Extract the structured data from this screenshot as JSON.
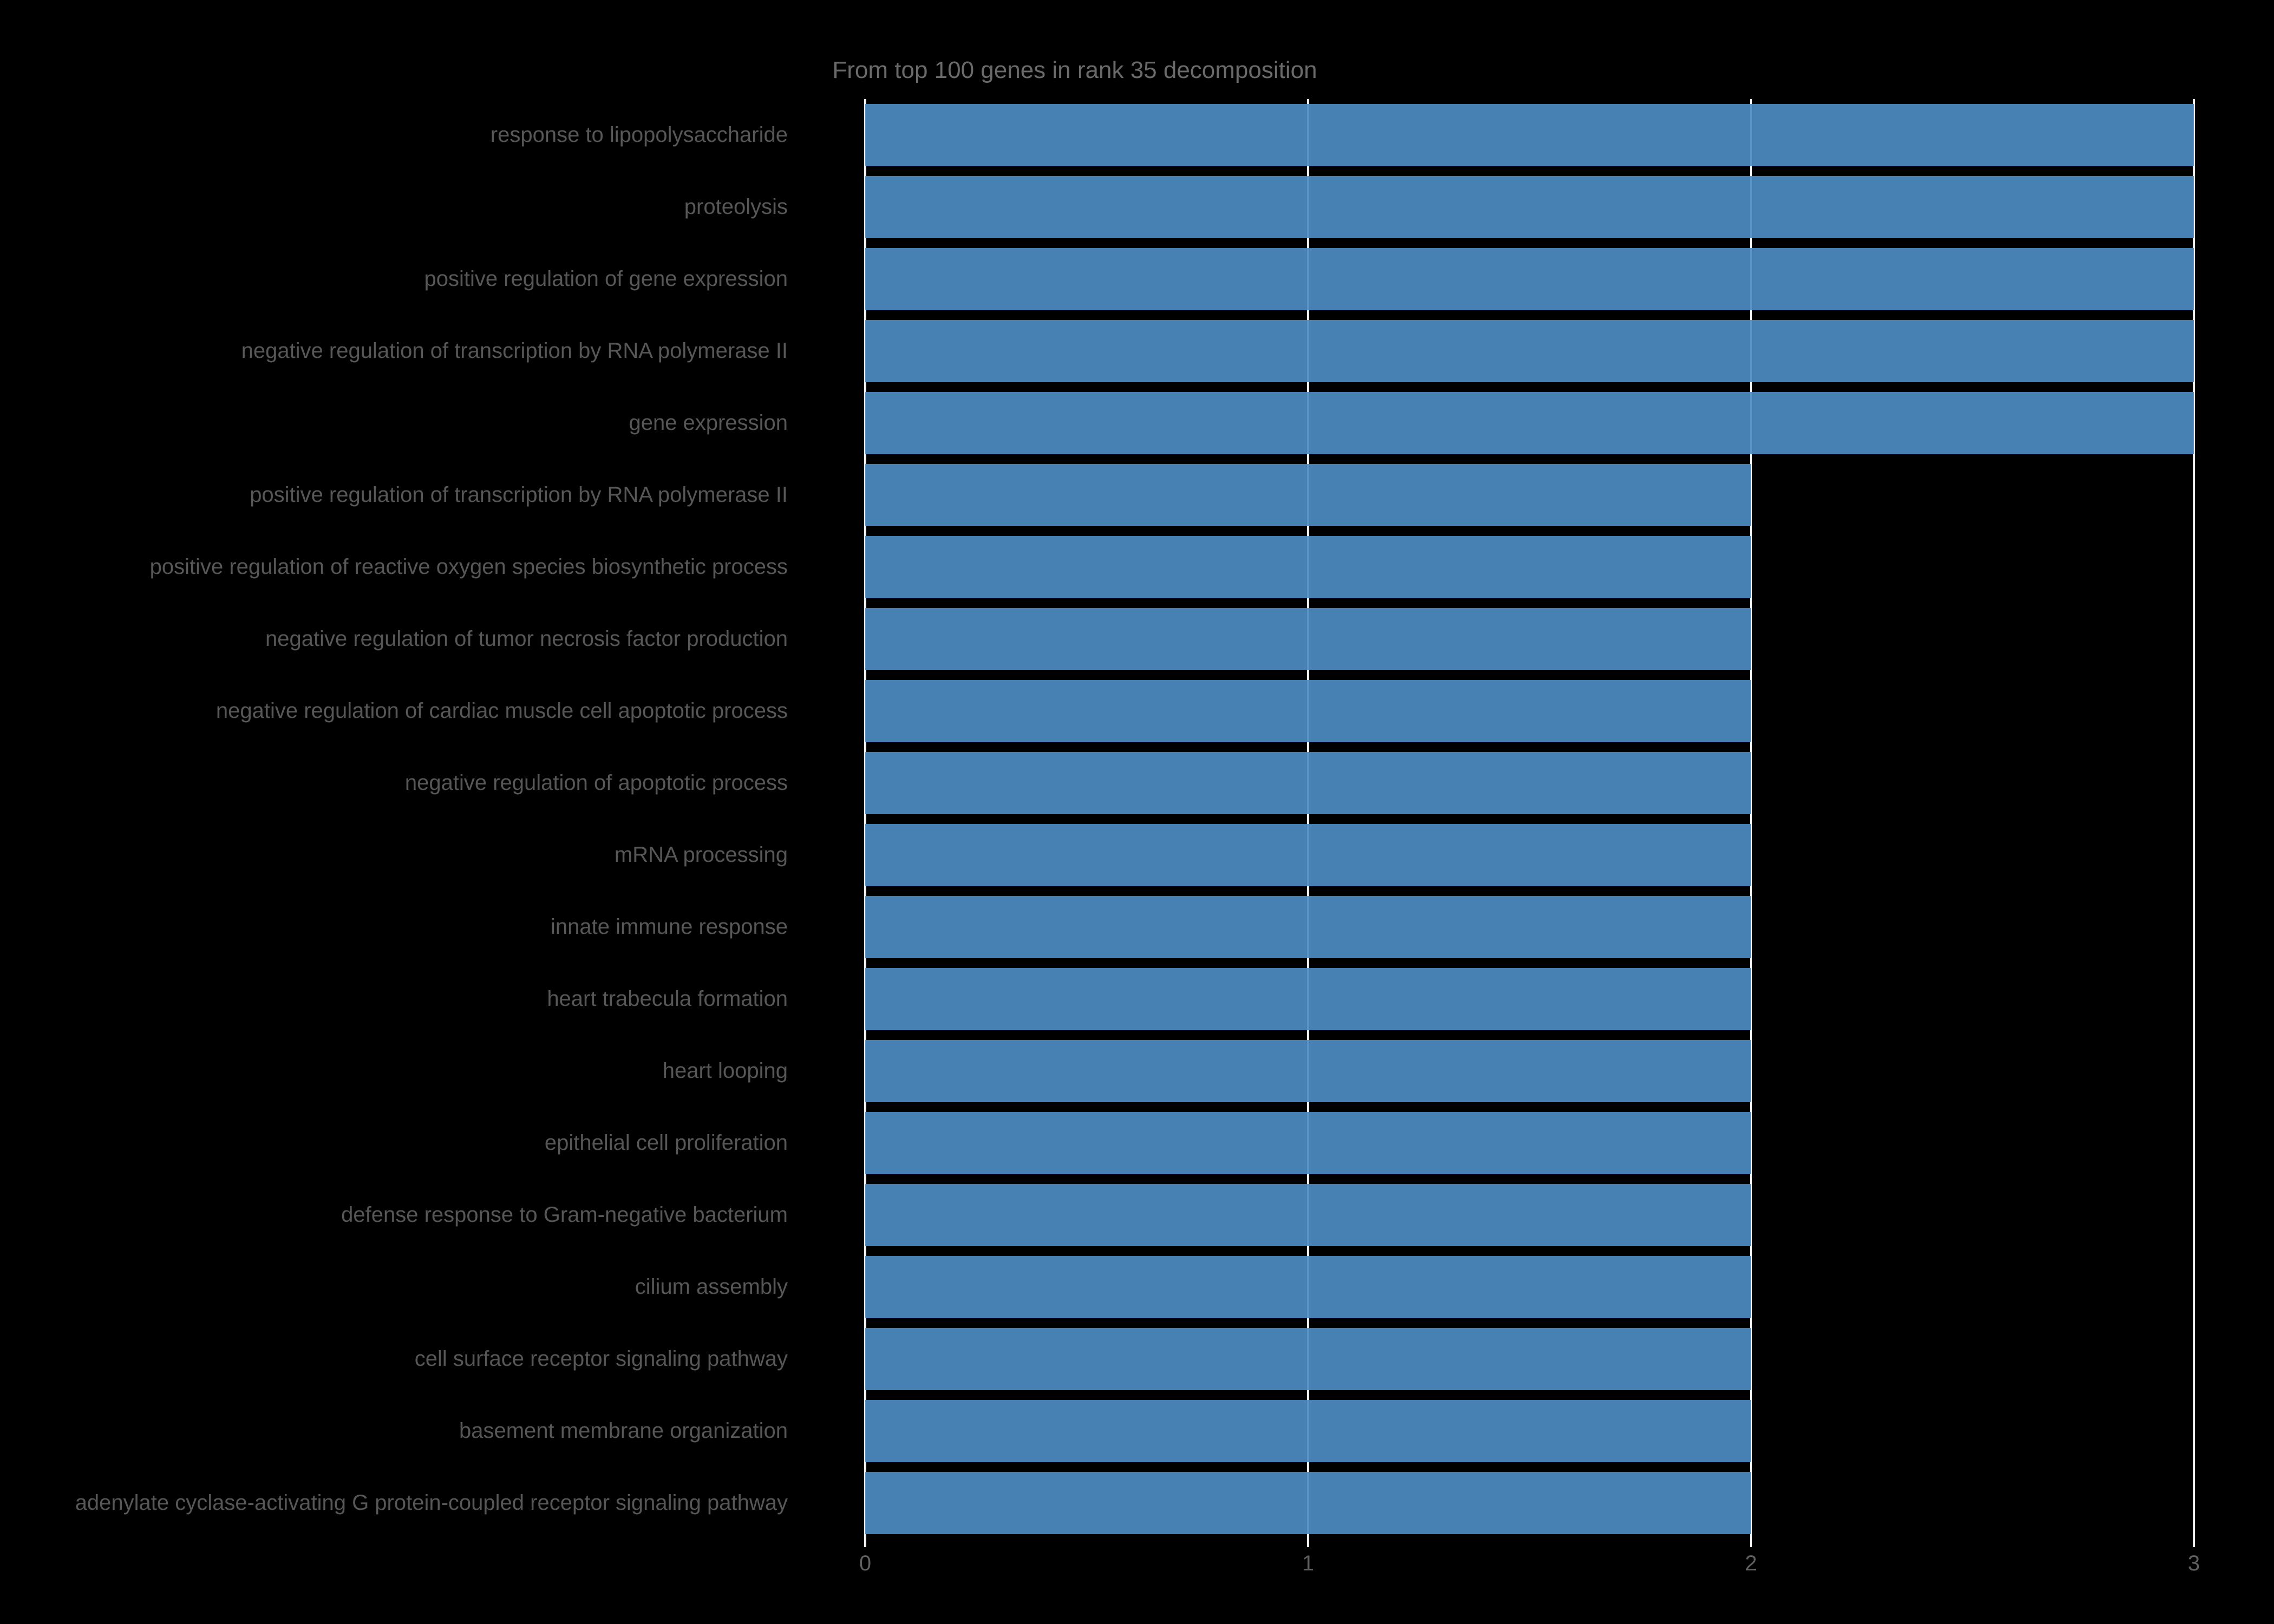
{
  "chart_data": {
    "type": "bar",
    "orientation": "horizontal",
    "title": "From top 100 genes in rank 35 decomposition",
    "categories": [
      "response to lipopolysaccharide",
      "proteolysis",
      "positive regulation of gene expression",
      "negative regulation of transcription by RNA polymerase II",
      "gene expression",
      "positive regulation of transcription by RNA polymerase II",
      "positive regulation of reactive oxygen species biosynthetic process",
      "negative regulation of tumor necrosis factor production",
      "negative regulation of cardiac muscle cell apoptotic process",
      "negative regulation of apoptotic process",
      "mRNA processing",
      "innate immune response",
      "heart trabecula formation",
      "heart looping",
      "epithelial cell proliferation",
      "defense response to Gram-negative bacterium",
      "cilium assembly",
      "cell surface receptor signaling pathway",
      "basement membrane organization",
      "adenylate cyclase-activating G protein-coupled receptor signaling pathway"
    ],
    "values": [
      3,
      3,
      3,
      3,
      3,
      2,
      2,
      2,
      2,
      2,
      2,
      2,
      2,
      2,
      2,
      2,
      2,
      2,
      2,
      2
    ],
    "xlabel": "",
    "ylabel": "",
    "xlim": [
      0,
      3
    ],
    "xticks": [
      0,
      1,
      2,
      3
    ],
    "grid": true,
    "legend": false,
    "colors": {
      "background": "#000000",
      "bar": "#4682b4",
      "gridline": "#f0f0f0",
      "title_text": "#6a6a6a",
      "label_text": "#575757",
      "tick_text": "#616161"
    }
  }
}
